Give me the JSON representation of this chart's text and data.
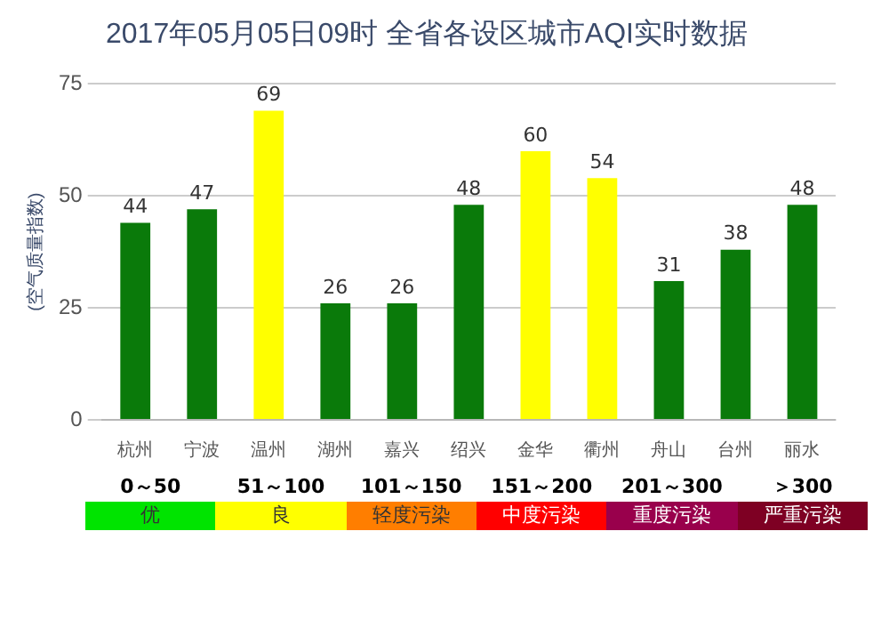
{
  "chart_data": {
    "type": "bar",
    "title": "2017年05月05日09时 全省各设区城市AQI实时数据",
    "ylabel": "(空气质量指数)",
    "categories": [
      "杭州",
      "宁波",
      "温州",
      "湖州",
      "嘉兴",
      "绍兴",
      "金华",
      "衢州",
      "舟山",
      "台州",
      "丽水"
    ],
    "values": [
      44,
      47,
      69,
      26,
      26,
      48,
      60,
      54,
      31,
      38,
      48
    ],
    "colors": [
      "#0a7a0a",
      "#0a7a0a",
      "#ffff00",
      "#0a7a0a",
      "#0a7a0a",
      "#0a7a0a",
      "#ffff00",
      "#ffff00",
      "#0a7a0a",
      "#0a7a0a",
      "#0a7a0a"
    ],
    "ylim": [
      0,
      75
    ],
    "yticks": [
      0,
      25,
      50,
      75
    ],
    "grid": "y",
    "data_labels": true,
    "legend": false,
    "annotations": [
      "0～50",
      "51～100",
      "101～150",
      "151～200",
      "201～300",
      "＞300",
      "优",
      "良",
      "轻度污染",
      "中度污染",
      "重度污染",
      "严重污染"
    ]
  }
}
